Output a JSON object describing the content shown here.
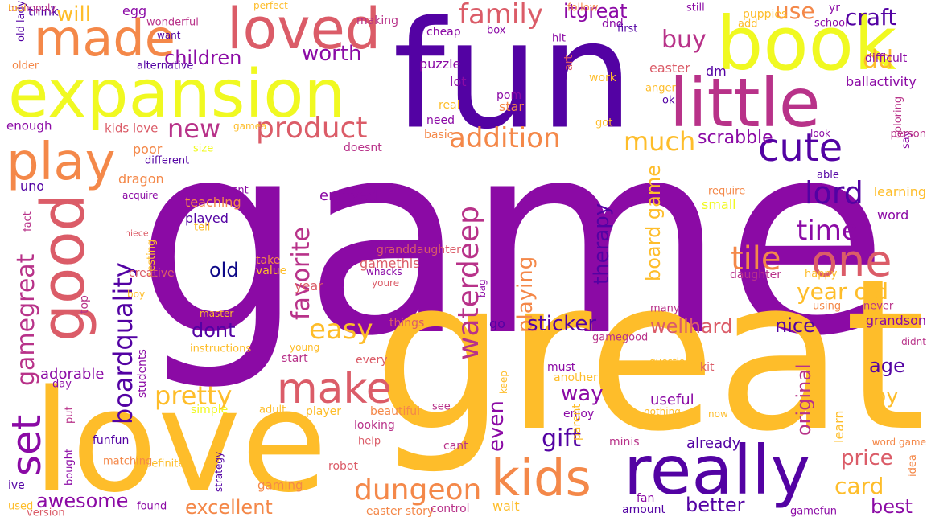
{
  "palette": [
    "#0d0887",
    "#5302a3",
    "#8b0aa5",
    "#b83289",
    "#db5c68",
    "#f48849",
    "#febd2a",
    "#f0f921"
  ],
  "words": [
    {
      "t": "game",
      "c": 2
    },
    {
      "t": "great",
      "c": 6
    },
    {
      "t": "fun",
      "c": 1
    },
    {
      "t": "love",
      "c": 6
    },
    {
      "t": "expansion",
      "c": 7
    },
    {
      "t": "book",
      "c": 7
    },
    {
      "t": "little",
      "c": 3
    },
    {
      "t": "really",
      "c": 1
    },
    {
      "t": "loved",
      "c": 4
    },
    {
      "t": "made",
      "c": 5
    },
    {
      "t": "play",
      "c": 5
    },
    {
      "t": "good",
      "c": 4
    },
    {
      "t": "cute",
      "c": 1
    },
    {
      "t": "one",
      "c": 4
    },
    {
      "t": "kids",
      "c": 5
    },
    {
      "t": "make",
      "c": 4
    },
    {
      "t": "set",
      "c": 2
    },
    {
      "t": "gamegreat",
      "c": 3
    },
    {
      "t": "product",
      "c": 4
    },
    {
      "t": "lord",
      "c": 1
    },
    {
      "t": "family",
      "c": 4
    },
    {
      "t": "dungeon",
      "c": 5
    },
    {
      "t": "addition",
      "c": 5
    },
    {
      "t": "waterdeep",
      "c": 3
    },
    {
      "t": "boardquality",
      "c": 1
    },
    {
      "t": "favorite",
      "c": 3
    },
    {
      "t": "easy",
      "c": 6
    },
    {
      "t": "pretty",
      "c": 6
    },
    {
      "t": "tile",
      "c": 5
    },
    {
      "t": "time",
      "c": 2
    },
    {
      "t": "year old",
      "c": 6
    },
    {
      "t": "new",
      "c": 3
    },
    {
      "t": "much",
      "c": 6
    },
    {
      "t": "buy",
      "c": 3
    },
    {
      "t": "craft",
      "c": 1
    },
    {
      "t": "dd",
      "c": 6
    },
    {
      "t": "worth",
      "c": 2
    },
    {
      "t": "children",
      "c": 2
    },
    {
      "t": "will",
      "c": 6
    },
    {
      "t": "itgreat",
      "c": 2
    },
    {
      "t": "use",
      "c": 5
    },
    {
      "t": "even",
      "c": 2
    },
    {
      "t": "playing",
      "c": 5
    },
    {
      "t": "therapy",
      "c": 1
    },
    {
      "t": "board game",
      "c": 6
    },
    {
      "t": "sticker",
      "c": 1
    },
    {
      "t": "gift",
      "c": 1
    },
    {
      "t": "way",
      "c": 2
    },
    {
      "t": "nice",
      "c": 1
    },
    {
      "t": "wellhard",
      "c": 4
    },
    {
      "t": "age",
      "c": 1
    },
    {
      "t": "toy",
      "c": 6
    },
    {
      "t": "original",
      "c": 3
    },
    {
      "t": "price",
      "c": 4
    },
    {
      "t": "card",
      "c": 6
    },
    {
      "t": "best",
      "c": 2
    },
    {
      "t": "better",
      "c": 1
    },
    {
      "t": "excellent",
      "c": 5
    },
    {
      "t": "awesome",
      "c": 2
    },
    {
      "t": "dont",
      "c": 1
    },
    {
      "t": "old",
      "c": 0
    },
    {
      "t": "scrabble",
      "c": 2
    },
    {
      "t": "easter",
      "c": 4
    },
    {
      "t": "dm",
      "c": 1
    },
    {
      "t": "ballactivity",
      "c": 2
    },
    {
      "t": "adorable",
      "c": 2
    },
    {
      "t": "useful",
      "c": 2
    },
    {
      "t": "already",
      "c": 1
    },
    {
      "t": "enjoyed",
      "c": 2
    },
    {
      "t": "teaching",
      "c": 5
    },
    {
      "t": "played",
      "c": 1
    },
    {
      "t": "gamethis",
      "c": 4
    },
    {
      "t": "year",
      "c": 4
    },
    {
      "t": "star",
      "c": 5
    },
    {
      "t": "lot",
      "c": 2
    },
    {
      "t": "puzzle",
      "c": 2
    },
    {
      "t": "enough",
      "c": 2
    },
    {
      "t": "kids love",
      "c": 4
    },
    {
      "t": "grandson",
      "c": 2
    },
    {
      "t": "word",
      "c": 2
    },
    {
      "t": "small",
      "c": 7
    },
    {
      "t": "learning",
      "c": 6
    },
    {
      "t": "go",
      "c": 1
    },
    {
      "t": "uno",
      "c": 1
    },
    {
      "t": "dragon",
      "c": 5
    },
    {
      "t": "poor",
      "c": 5
    },
    {
      "t": "think",
      "c": 1
    },
    {
      "t": "egg",
      "c": 2
    },
    {
      "t": "perfect",
      "c": 6
    },
    {
      "t": "wonderful",
      "c": 3
    },
    {
      "t": "want",
      "c": 1
    },
    {
      "t": "making",
      "c": 3
    },
    {
      "t": "cheap",
      "c": 2
    },
    {
      "t": "box",
      "c": 2
    },
    {
      "t": "follow",
      "c": 5
    },
    {
      "t": "dnd",
      "c": 2
    },
    {
      "t": "first",
      "c": 1
    },
    {
      "t": "still",
      "c": 2
    },
    {
      "t": "puppies",
      "c": 6
    },
    {
      "t": "add",
      "c": 6
    },
    {
      "t": "school",
      "c": 2
    },
    {
      "t": "yr",
      "c": 2
    },
    {
      "t": "difficult",
      "c": 2
    },
    {
      "t": "older",
      "c": 5
    },
    {
      "t": "alternative",
      "c": 1
    },
    {
      "t": "hit",
      "c": 2
    },
    {
      "t": "art",
      "c": 4
    },
    {
      "t": "work",
      "c": 6
    },
    {
      "t": "anger",
      "c": 6
    },
    {
      "t": "ok",
      "c": 1
    },
    {
      "t": "pom",
      "c": 2
    },
    {
      "t": "real",
      "c": 6
    },
    {
      "t": "need",
      "c": 2
    },
    {
      "t": "basic",
      "c": 5
    },
    {
      "t": "gamea",
      "c": 6
    },
    {
      "t": "got",
      "c": 6
    },
    {
      "t": "look",
      "c": 2
    },
    {
      "t": "coloring",
      "c": 3
    },
    {
      "t": "say",
      "c": 2
    },
    {
      "t": "person",
      "c": 3
    },
    {
      "t": "size",
      "c": 7
    },
    {
      "t": "doesnt",
      "c": 3
    },
    {
      "t": "different",
      "c": 1
    },
    {
      "t": "able",
      "c": 1
    },
    {
      "t": "require",
      "c": 5
    },
    {
      "t": "wasnt",
      "c": 2
    },
    {
      "t": "tell",
      "c": 6
    },
    {
      "t": "acquire",
      "c": 2
    },
    {
      "t": "fact",
      "c": 3
    },
    {
      "t": "niece",
      "c": 4
    },
    {
      "t": "bag",
      "c": 2
    },
    {
      "t": "granddaughter",
      "c": 4
    },
    {
      "t": "whacks",
      "c": 2
    },
    {
      "t": "youre",
      "c": 4
    },
    {
      "t": "take",
      "c": 5
    },
    {
      "t": "value",
      "c": 6
    },
    {
      "t": "nesting",
      "c": 6
    },
    {
      "t": "creative",
      "c": 4
    },
    {
      "t": "boy",
      "c": 6
    },
    {
      "t": "top",
      "c": 3
    },
    {
      "t": "daughter",
      "c": 3
    },
    {
      "t": "happy",
      "c": 6
    },
    {
      "t": "master",
      "c": 6
    },
    {
      "t": "many",
      "c": 3
    },
    {
      "t": "using",
      "c": 5
    },
    {
      "t": "never",
      "c": 3
    },
    {
      "t": "things",
      "c": 4
    },
    {
      "t": "gamegood",
      "c": 3
    },
    {
      "t": "young",
      "c": 6
    },
    {
      "t": "instructions",
      "c": 6
    },
    {
      "t": "start",
      "c": 3
    },
    {
      "t": "every",
      "c": 4
    },
    {
      "t": "didnt",
      "c": 3
    },
    {
      "t": "day",
      "c": 2
    },
    {
      "t": "students",
      "c": 2
    },
    {
      "t": "must",
      "c": 2
    },
    {
      "t": "another",
      "c": 6
    },
    {
      "t": "questions",
      "c": 6
    },
    {
      "t": "kit",
      "c": 4
    },
    {
      "t": "keep",
      "c": 6
    },
    {
      "t": "simple",
      "c": 7
    },
    {
      "t": "adult",
      "c": 6
    },
    {
      "t": "player",
      "c": 6
    },
    {
      "t": "beautiful",
      "c": 5
    },
    {
      "t": "see",
      "c": 3
    },
    {
      "t": "nothing",
      "c": 6
    },
    {
      "t": "now",
      "c": 6
    },
    {
      "t": "put",
      "c": 3
    },
    {
      "t": "looking",
      "c": 3
    },
    {
      "t": "enjoy",
      "c": 2
    },
    {
      "t": "funfun",
      "c": 1
    },
    {
      "t": "help",
      "c": 4
    },
    {
      "t": "parent",
      "c": 6
    },
    {
      "t": "minis",
      "c": 3
    },
    {
      "t": "learn",
      "c": 6
    },
    {
      "t": "word game",
      "c": 5
    },
    {
      "t": "bought",
      "c": 2
    },
    {
      "t": "matching",
      "c": 5
    },
    {
      "t": "definitely",
      "c": 6
    },
    {
      "t": "cant",
      "c": 3
    },
    {
      "t": "robot",
      "c": 4
    },
    {
      "t": "ive",
      "c": 1
    },
    {
      "t": "strategy",
      "c": 1
    },
    {
      "t": "gaming",
      "c": 5
    },
    {
      "t": "fan",
      "c": 2
    },
    {
      "t": "idea",
      "c": 5
    },
    {
      "t": "used",
      "c": 6
    },
    {
      "t": "found",
      "c": 2
    },
    {
      "t": "wait",
      "c": 6
    },
    {
      "t": "version",
      "c": 4
    },
    {
      "t": "easter story",
      "c": 5
    },
    {
      "t": "control",
      "c": 3
    },
    {
      "t": "amount",
      "c": 1
    },
    {
      "t": "gamefun",
      "c": 2
    },
    {
      "t": "old lady",
      "c": 1
    },
    {
      "t": "monopoly",
      "c": 3
    },
    {
      "t": "tool",
      "c": 6
    }
  ]
}
